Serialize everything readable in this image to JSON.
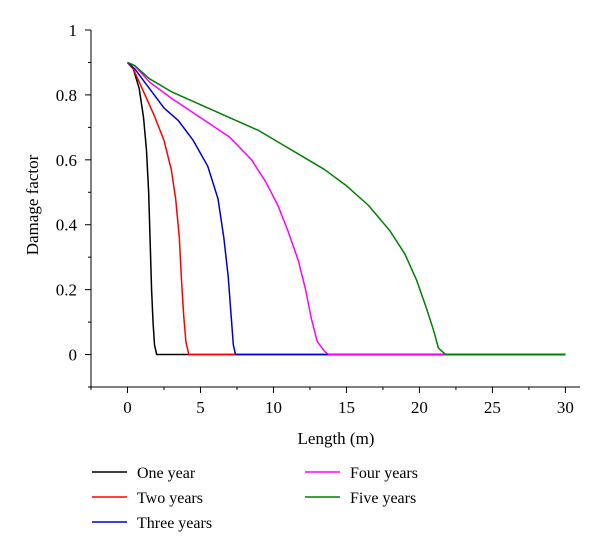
{
  "chart_data": {
    "type": "line",
    "title": "",
    "xlabel": "Length (m)",
    "ylabel": "Damage factor",
    "xlim": [
      -2.5,
      31
    ],
    "ylim": [
      -0.1,
      1
    ],
    "xticks": [
      0,
      5,
      10,
      15,
      20,
      25,
      30
    ],
    "yticks": [
      0,
      0.2,
      0.4,
      0.6,
      0.8,
      1
    ],
    "xtick_labels": [
      "0",
      "5",
      "10",
      "15",
      "20",
      "25",
      "30"
    ],
    "ytick_labels": [
      "0",
      "0.2",
      "0.4",
      "0.6",
      "0.8",
      "1"
    ],
    "grid": false,
    "legend_position": "bottom",
    "series": [
      {
        "name": "One year",
        "color": "#000000",
        "points": [
          [
            0,
            0.9
          ],
          [
            0.4,
            0.88
          ],
          [
            0.8,
            0.82
          ],
          [
            1.1,
            0.73
          ],
          [
            1.3,
            0.63
          ],
          [
            1.45,
            0.5
          ],
          [
            1.55,
            0.35
          ],
          [
            1.65,
            0.2
          ],
          [
            1.75,
            0.1
          ],
          [
            1.85,
            0.03
          ],
          [
            2.0,
            0
          ],
          [
            30,
            0
          ]
        ]
      },
      {
        "name": "Two years",
        "color": "#ff0000",
        "points": [
          [
            0,
            0.9
          ],
          [
            0.4,
            0.88
          ],
          [
            1.0,
            0.82
          ],
          [
            1.8,
            0.74
          ],
          [
            2.5,
            0.66
          ],
          [
            3.0,
            0.57
          ],
          [
            3.3,
            0.48
          ],
          [
            3.55,
            0.36
          ],
          [
            3.7,
            0.23
          ],
          [
            3.85,
            0.12
          ],
          [
            4.0,
            0.04
          ],
          [
            4.2,
            0
          ],
          [
            30,
            0
          ]
        ]
      },
      {
        "name": "Three years",
        "color": "#0000cc",
        "points": [
          [
            0,
            0.9
          ],
          [
            0.5,
            0.88
          ],
          [
            1.5,
            0.82
          ],
          [
            2.5,
            0.76
          ],
          [
            3.5,
            0.72
          ],
          [
            4.5,
            0.66
          ],
          [
            5.5,
            0.58
          ],
          [
            6.2,
            0.48
          ],
          [
            6.6,
            0.36
          ],
          [
            6.9,
            0.24
          ],
          [
            7.1,
            0.12
          ],
          [
            7.25,
            0.03
          ],
          [
            7.4,
            0
          ],
          [
            30,
            0
          ]
        ]
      },
      {
        "name": "Four years",
        "color": "#ff00ff",
        "points": [
          [
            0,
            0.9
          ],
          [
            0.5,
            0.89
          ],
          [
            1.5,
            0.84
          ],
          [
            3,
            0.79
          ],
          [
            5,
            0.73
          ],
          [
            7,
            0.67
          ],
          [
            8.5,
            0.6
          ],
          [
            9.5,
            0.53
          ],
          [
            10.3,
            0.46
          ],
          [
            11,
            0.38
          ],
          [
            11.7,
            0.29
          ],
          [
            12.2,
            0.2
          ],
          [
            12.6,
            0.11
          ],
          [
            13,
            0.04
          ],
          [
            13.5,
            0.01
          ],
          [
            13.8,
            0
          ],
          [
            30,
            0
          ]
        ]
      },
      {
        "name": "Five years",
        "color": "#008000",
        "points": [
          [
            0,
            0.9
          ],
          [
            0.5,
            0.89
          ],
          [
            1.5,
            0.85
          ],
          [
            3,
            0.81
          ],
          [
            5,
            0.77
          ],
          [
            7,
            0.73
          ],
          [
            9,
            0.69
          ],
          [
            10.5,
            0.65
          ],
          [
            12,
            0.61
          ],
          [
            13.5,
            0.57
          ],
          [
            15,
            0.52
          ],
          [
            16.5,
            0.46
          ],
          [
            18,
            0.38
          ],
          [
            19,
            0.31
          ],
          [
            19.8,
            0.23
          ],
          [
            20.5,
            0.14
          ],
          [
            21.0,
            0.07
          ],
          [
            21.3,
            0.02
          ],
          [
            21.8,
            0
          ],
          [
            30,
            0
          ]
        ]
      }
    ]
  }
}
